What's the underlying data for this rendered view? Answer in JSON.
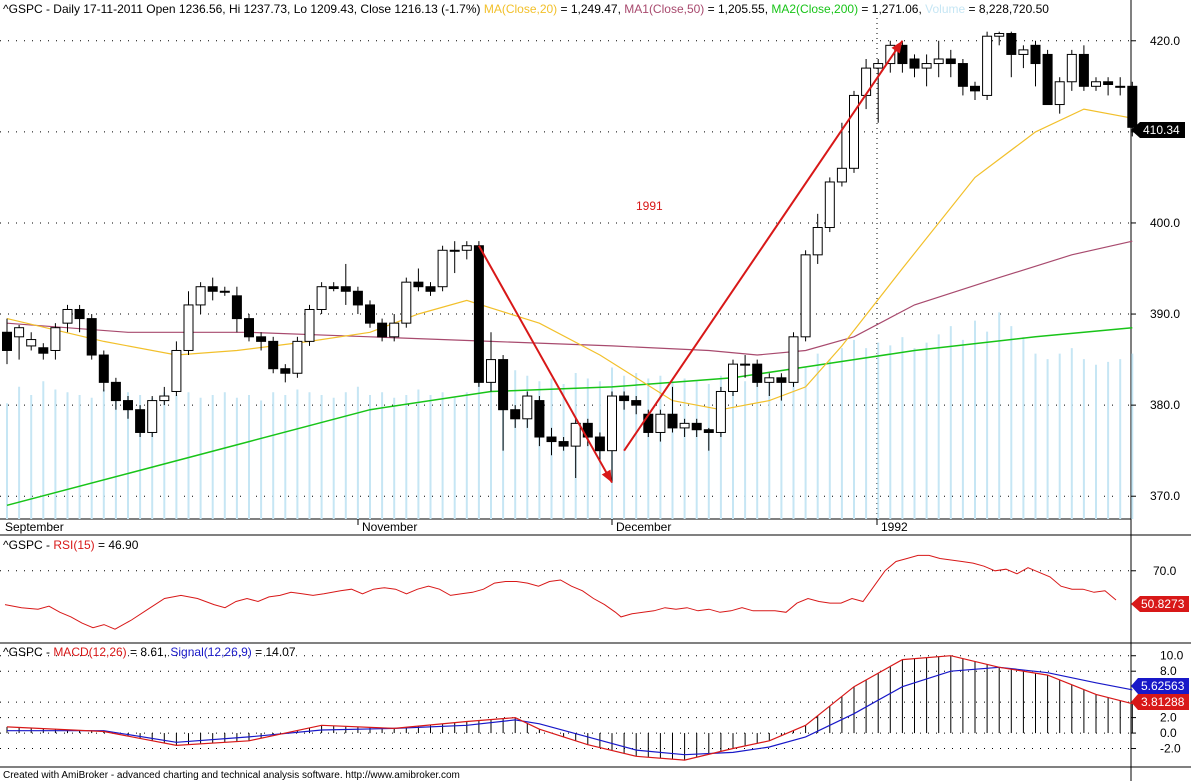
{
  "header": {
    "symbol": "^GSPC",
    "title_main": "^GSPC - Daily 17-11-2011 Open 1236.56, Hi 1237.73, Lo 1209.43, Close 1216.13 (-1.7%)",
    "ma20_label": "MA(Close,20)",
    "ma20_value": " = 1,249.47,",
    "ma50_label": "MA1(Close,50)",
    "ma50_value": " = 1,205.55,",
    "ma200_label": "MA2(Close,200)",
    "ma200_value": " = 1,271.06,",
    "volume_label": "Volume",
    "volume_value": " = 8,228,720.50"
  },
  "price_panel": {
    "annotation": "1991",
    "last_price_label": "410.34",
    "y_ticks": [
      "420.0",
      "410.0",
      "400.0",
      "390.0",
      "380.0",
      "370.0"
    ],
    "x_labels": [
      "September",
      "November",
      "December",
      "1992"
    ]
  },
  "rsi_panel": {
    "prefix": "^GSPC - ",
    "label": "RSI(15)",
    "value": " = 46.90",
    "y_ticks": [
      "70.0"
    ],
    "last_label": "50.8273"
  },
  "macd_panel": {
    "prefix": "^GSPC - ",
    "macd_label": "MACD(12,26)",
    "macd_value": " = 8.61,",
    "signal_label": "Signal(12,26,9)",
    "signal_value": " = 14.07",
    "y_ticks": [
      "10.0",
      "8.0",
      "4.0",
      "2.0",
      "0.0",
      "-2.0"
    ],
    "macd_last": "3.81288",
    "signal_last": "5.62563"
  },
  "footer": "Created with AmiBroker - advanced charting and technical analysis software. http://www.amibroker.com",
  "colors": {
    "background": "#ffffff",
    "up_candle": "#ffffff",
    "down_candle": "#000000",
    "ma20": "#f2c02b",
    "ma50": "#a84a6e",
    "ma200": "#18c418",
    "volume": "#c6e6f4",
    "arrow": "#d81818",
    "rsi": "#d81818",
    "macd": "#d81818",
    "signal": "#1818c8"
  },
  "chart_data": {
    "type": "candlestick",
    "price_axis": {
      "ylim": [
        367.5,
        422.5
      ],
      "ticks": [
        370,
        380,
        390,
        400,
        410,
        420
      ],
      "grid": "dotted"
    },
    "candles": [
      [
        388.0,
        386.0,
        389.5,
        384.5
      ],
      [
        387.5,
        388.5,
        388.8,
        385.0
      ],
      [
        386.5,
        387.2,
        388.0,
        386.0
      ],
      [
        386.3,
        385.7,
        386.8,
        385.0
      ],
      [
        386.0,
        388.5,
        389.0,
        385.0
      ],
      [
        389.0,
        390.5,
        391.0,
        388.0
      ],
      [
        390.5,
        389.5,
        391.0,
        388.0
      ],
      [
        389.5,
        385.5,
        390.0,
        385.0
      ],
      [
        385.5,
        382.5,
        386.0,
        381.5
      ],
      [
        382.5,
        380.5,
        383.0,
        379.5
      ],
      [
        380.5,
        379.5,
        381.0,
        378.5
      ],
      [
        379.5,
        377.0,
        380.0,
        376.5
      ],
      [
        377.0,
        380.5,
        381.0,
        376.5
      ],
      [
        380.5,
        381.0,
        382.0,
        380.0
      ],
      [
        381.5,
        386.0,
        387.0,
        381.0
      ],
      [
        386.0,
        391.0,
        392.5,
        385.5
      ],
      [
        391.0,
        393.0,
        393.5,
        390.0
      ],
      [
        393.0,
        392.5,
        394.0,
        391.5
      ],
      [
        392.5,
        392.5,
        393.0,
        392.0
      ],
      [
        392.0,
        389.5,
        393.0,
        388.0
      ],
      [
        389.5,
        387.5,
        390.0,
        387.0
      ],
      [
        387.5,
        387.0,
        388.0,
        386.0
      ],
      [
        387.0,
        384.0,
        387.5,
        383.5
      ],
      [
        384.0,
        383.5,
        384.5,
        382.5
      ],
      [
        383.5,
        387.0,
        387.5,
        383.0
      ],
      [
        387.0,
        390.5,
        391.0,
        386.5
      ],
      [
        390.5,
        393.0,
        393.5,
        390.0
      ],
      [
        393.0,
        392.8,
        393.5,
        392.5
      ],
      [
        393.0,
        392.5,
        395.5,
        391.0
      ],
      [
        392.5,
        391.0,
        393.0,
        390.0
      ],
      [
        391.0,
        389.0,
        391.5,
        388.5
      ],
      [
        389.0,
        387.5,
        389.5,
        387.0
      ],
      [
        387.5,
        389.0,
        390.0,
        387.0
      ],
      [
        389.0,
        393.5,
        394.0,
        388.5
      ],
      [
        393.5,
        393.0,
        395.0,
        392.5
      ],
      [
        393.0,
        392.5,
        393.5,
        392.0
      ],
      [
        393.0,
        397.0,
        397.5,
        392.5
      ],
      [
        397.0,
        397.0,
        398.0,
        394.5
      ],
      [
        397.0,
        397.5,
        398.0,
        396.0
      ],
      [
        397.5,
        382.5,
        398.0,
        382.0
      ],
      [
        382.5,
        385.0,
        388.0,
        381.5
      ],
      [
        385.0,
        379.5,
        385.5,
        375.0
      ],
      [
        379.5,
        378.5,
        380.0,
        377.5
      ],
      [
        378.5,
        381.0,
        381.5,
        377.5
      ],
      [
        380.5,
        376.5,
        381.0,
        375.5
      ],
      [
        376.5,
        376.0,
        377.5,
        374.5
      ],
      [
        376.0,
        375.5,
        376.5,
        375.0
      ],
      [
        375.5,
        378.0,
        378.5,
        372.0
      ],
      [
        378.0,
        376.5,
        378.5,
        375.5
      ],
      [
        376.5,
        375.0,
        377.0,
        374.0
      ],
      [
        375.0,
        381.0,
        381.5,
        371.5
      ],
      [
        381.0,
        380.5,
        381.5,
        379.5
      ],
      [
        380.5,
        380.0,
        381.0,
        379.0
      ],
      [
        379.0,
        377.0,
        379.5,
        376.5
      ],
      [
        377.0,
        379.0,
        379.5,
        376.0
      ],
      [
        379.0,
        377.5,
        382.0,
        377.0
      ],
      [
        377.5,
        378.0,
        378.5,
        376.5
      ],
      [
        378.0,
        377.3,
        378.5,
        376.5
      ],
      [
        377.3,
        377.0,
        377.5,
        375.0
      ],
      [
        377.0,
        381.5,
        382.0,
        376.5
      ],
      [
        381.5,
        384.5,
        385.0,
        381.0
      ],
      [
        384.5,
        384.5,
        385.5,
        383.0
      ],
      [
        384.5,
        382.5,
        385.0,
        382.0
      ],
      [
        382.5,
        383.0,
        383.5,
        381.0
      ],
      [
        383.0,
        382.5,
        383.5,
        380.5
      ],
      [
        382.5,
        387.5,
        388.0,
        382.0
      ],
      [
        387.5,
        396.5,
        397.0,
        387.0
      ],
      [
        396.5,
        399.5,
        401.0,
        395.5
      ],
      [
        399.5,
        404.5,
        405.0,
        399.0
      ],
      [
        404.5,
        406.0,
        411.0,
        404.0
      ],
      [
        406.0,
        414.0,
        414.5,
        405.5
      ],
      [
        414.0,
        417.0,
        418.0,
        412.5
      ],
      [
        417.0,
        417.5,
        418.0,
        411.0
      ],
      [
        417.5,
        419.5,
        420.0,
        416.5
      ],
      [
        419.5,
        417.5,
        420.0,
        416.5
      ],
      [
        418.0,
        417.0,
        418.5,
        416.0
      ],
      [
        417.0,
        417.5,
        418.5,
        415.0
      ],
      [
        417.5,
        418.0,
        420.0,
        416.0
      ],
      [
        418.0,
        417.5,
        419.0,
        416.0
      ],
      [
        417.5,
        415.0,
        418.0,
        414.0
      ],
      [
        415.0,
        414.5,
        415.5,
        413.5
      ],
      [
        414.0,
        420.5,
        421.0,
        413.5
      ],
      [
        420.5,
        420.8,
        421.0,
        419.5
      ],
      [
        420.8,
        418.5,
        421.0,
        416.0
      ],
      [
        418.5,
        419.0,
        419.5,
        417.0
      ],
      [
        419.5,
        417.5,
        420.0,
        415.0
      ],
      [
        418.5,
        413.0,
        419.0,
        413.0
      ],
      [
        413.0,
        415.5,
        416.0,
        412.0
      ],
      [
        415.5,
        418.5,
        419.0,
        414.5
      ],
      [
        418.5,
        415.0,
        419.5,
        414.5
      ],
      [
        415.0,
        415.5,
        416.0,
        414.5
      ],
      [
        415.5,
        415.2,
        416.0,
        414.0
      ],
      [
        415.0,
        415.0,
        416.0,
        414.0
      ],
      [
        415.0,
        410.5,
        415.5,
        409.5
      ]
    ],
    "ma20": [
      [
        0,
        389.5
      ],
      [
        8,
        387.0
      ],
      [
        14,
        385.5
      ],
      [
        19,
        386.0
      ],
      [
        25,
        387.0
      ],
      [
        30,
        388.0
      ],
      [
        34,
        390.0
      ],
      [
        38,
        391.5
      ],
      [
        44,
        389.0
      ],
      [
        49,
        385.5
      ],
      [
        55,
        380.5
      ],
      [
        59,
        379.5
      ],
      [
        63,
        380.5
      ],
      [
        66,
        382.0
      ],
      [
        69,
        386.5
      ],
      [
        74,
        395.0
      ],
      [
        80,
        405.0
      ],
      [
        85,
        410.0
      ],
      [
        89,
        412.5
      ],
      [
        93,
        411.5
      ]
    ],
    "ma50": [
      [
        0,
        389.0
      ],
      [
        10,
        388.0
      ],
      [
        20,
        388.0
      ],
      [
        30,
        387.5
      ],
      [
        40,
        387.0
      ],
      [
        50,
        386.5
      ],
      [
        58,
        386.0
      ],
      [
        62,
        385.5
      ],
      [
        66,
        386.0
      ],
      [
        70,
        387.5
      ],
      [
        75,
        391.0
      ],
      [
        82,
        394.0
      ],
      [
        88,
        396.5
      ],
      [
        93,
        398.0
      ]
    ],
    "ma200": [
      [
        0,
        369.0
      ],
      [
        10,
        372.5
      ],
      [
        20,
        376.0
      ],
      [
        30,
        379.5
      ],
      [
        40,
        381.5
      ],
      [
        50,
        382.0
      ],
      [
        60,
        383.0
      ],
      [
        65,
        384.0
      ],
      [
        70,
        385.0
      ],
      [
        75,
        386.0
      ],
      [
        85,
        387.5
      ],
      [
        93,
        388.5
      ]
    ],
    "volume": [
      0.42,
      0.48,
      0.45,
      0.5,
      0.47,
      0.46,
      0.45,
      0.44,
      0.47,
      0.45,
      0.46,
      0.45,
      0.44,
      0.46,
      0.45,
      0.46,
      0.44,
      0.45,
      0.46,
      0.44,
      0.45,
      0.43,
      0.46,
      0.45,
      0.47,
      0.46,
      0.45,
      0.44,
      0.46,
      0.48,
      0.45,
      0.46,
      0.44,
      0.45,
      0.47,
      0.45,
      0.46,
      0.44,
      0.46,
      0.55,
      0.56,
      0.58,
      0.54,
      0.52,
      0.5,
      0.51,
      0.49,
      0.53,
      0.51,
      0.5,
      0.55,
      0.52,
      0.53,
      0.51,
      0.52,
      0.5,
      0.51,
      0.5,
      0.49,
      0.52,
      0.51,
      0.5,
      0.52,
      0.51,
      0.52,
      0.5,
      0.55,
      0.6,
      0.58,
      0.62,
      0.65,
      0.62,
      0.64,
      0.63,
      0.66,
      0.62,
      0.64,
      0.67,
      0.7,
      0.65,
      0.72,
      0.68,
      0.75,
      0.7,
      0.66,
      0.6,
      0.58,
      0.6,
      0.62,
      0.58,
      0.56,
      0.57,
      0.58,
      0.6
    ],
    "trend_arrows": [
      {
        "from": [
          39,
          397.5
        ],
        "to": [
          50,
          371.5
        ]
      },
      {
        "from": [
          51,
          375.0
        ],
        "to": [
          74,
          420.0
        ]
      }
    ],
    "rsi": {
      "ylim": [
        25,
        90
      ],
      "ticks": [
        70
      ],
      "values": [
        [
          0,
          48
        ],
        [
          3,
          46
        ],
        [
          6,
          45
        ],
        [
          8,
          47
        ],
        [
          10,
          43
        ],
        [
          12,
          40
        ],
        [
          14,
          36
        ],
        [
          16,
          33
        ],
        [
          18,
          35
        ],
        [
          20,
          32
        ],
        [
          23,
          38
        ],
        [
          26,
          45
        ],
        [
          29,
          52
        ],
        [
          32,
          54
        ],
        [
          35,
          52
        ],
        [
          38,
          48
        ],
        [
          40,
          46
        ],
        [
          42,
          50
        ],
        [
          44,
          52
        ],
        [
          46,
          50
        ],
        [
          48,
          53
        ],
        [
          50,
          54
        ],
        [
          52,
          56
        ],
        [
          54,
          55
        ],
        [
          56,
          54
        ],
        [
          58,
          55
        ],
        [
          61,
          57
        ],
        [
          63,
          58
        ],
        [
          65,
          55
        ],
        [
          67,
          58
        ],
        [
          69,
          59
        ],
        [
          71,
          58
        ],
        [
          73,
          55
        ],
        [
          75,
          58
        ],
        [
          77,
          60
        ],
        [
          79,
          58
        ],
        [
          81,
          54
        ],
        [
          83,
          55
        ],
        [
          85,
          56
        ],
        [
          87,
          58
        ],
        [
          89,
          62
        ],
        [
          91,
          63
        ],
        [
          93,
          63
        ],
        [
          95,
          62
        ],
        [
          97,
          60
        ],
        [
          99,
          63
        ],
        [
          101,
          64
        ],
        [
          103,
          60
        ],
        [
          105,
          57
        ],
        [
          107,
          52
        ],
        [
          109,
          48
        ],
        [
          111,
          43
        ],
        [
          112,
          40
        ],
        [
          114,
          42
        ],
        [
          116,
          43
        ],
        [
          118,
          44
        ],
        [
          120,
          46
        ],
        [
          122,
          45
        ],
        [
          124,
          46
        ],
        [
          126,
          44
        ],
        [
          128,
          45
        ],
        [
          130,
          43
        ],
        [
          132,
          44
        ],
        [
          134,
          46
        ],
        [
          136,
          44
        ],
        [
          138,
          44
        ],
        [
          140,
          44
        ],
        [
          142,
          43
        ],
        [
          144,
          49
        ],
        [
          146,
          52
        ],
        [
          148,
          50
        ],
        [
          150,
          49
        ],
        [
          152,
          49
        ],
        [
          154,
          52
        ],
        [
          156,
          50
        ],
        [
          158,
          60
        ],
        [
          160,
          70
        ],
        [
          162,
          76
        ],
        [
          164,
          78
        ],
        [
          166,
          80
        ],
        [
          168,
          80
        ],
        [
          170,
          78
        ],
        [
          172,
          77
        ],
        [
          174,
          76
        ],
        [
          176,
          75
        ],
        [
          178,
          73
        ],
        [
          180,
          70
        ],
        [
          182,
          71
        ],
        [
          184,
          68
        ],
        [
          186,
          72
        ],
        [
          188,
          69
        ],
        [
          190,
          66
        ],
        [
          192,
          60
        ],
        [
          194,
          58
        ],
        [
          196,
          58
        ],
        [
          198,
          56
        ],
        [
          200,
          57
        ],
        [
          202,
          51
        ]
      ]
    },
    "macd": {
      "ylim": [
        -4,
        11
      ],
      "ticks": [
        10,
        8,
        4,
        2,
        0,
        -2
      ],
      "macd": [
        [
          0,
          0.8
        ],
        [
          8,
          0.2
        ],
        [
          14,
          -1.6
        ],
        [
          20,
          -1.0
        ],
        [
          26,
          1.0
        ],
        [
          32,
          0.6
        ],
        [
          38,
          1.5
        ],
        [
          42,
          2.0
        ],
        [
          44,
          0.5
        ],
        [
          48,
          -1.5
        ],
        [
          52,
          -3.0
        ],
        [
          56,
          -3.5
        ],
        [
          60,
          -2.0
        ],
        [
          63,
          -1.0
        ],
        [
          66,
          1.0
        ],
        [
          70,
          6.0
        ],
        [
          74,
          9.5
        ],
        [
          78,
          10.0
        ],
        [
          82,
          8.5
        ],
        [
          86,
          7.5
        ],
        [
          90,
          5.0
        ],
        [
          93,
          3.8
        ]
      ],
      "signal": [
        [
          0,
          0.3
        ],
        [
          8,
          0.3
        ],
        [
          14,
          -1.2
        ],
        [
          20,
          -0.5
        ],
        [
          26,
          0.4
        ],
        [
          32,
          0.6
        ],
        [
          38,
          1.0
        ],
        [
          42,
          1.7
        ],
        [
          44,
          1.2
        ],
        [
          48,
          -0.5
        ],
        [
          52,
          -2.2
        ],
        [
          56,
          -2.8
        ],
        [
          60,
          -2.5
        ],
        [
          63,
          -1.8
        ],
        [
          66,
          -0.5
        ],
        [
          70,
          2.5
        ],
        [
          74,
          6.0
        ],
        [
          78,
          8.0
        ],
        [
          82,
          8.5
        ],
        [
          86,
          7.8
        ],
        [
          90,
          6.5
        ],
        [
          93,
          5.6
        ]
      ]
    }
  }
}
